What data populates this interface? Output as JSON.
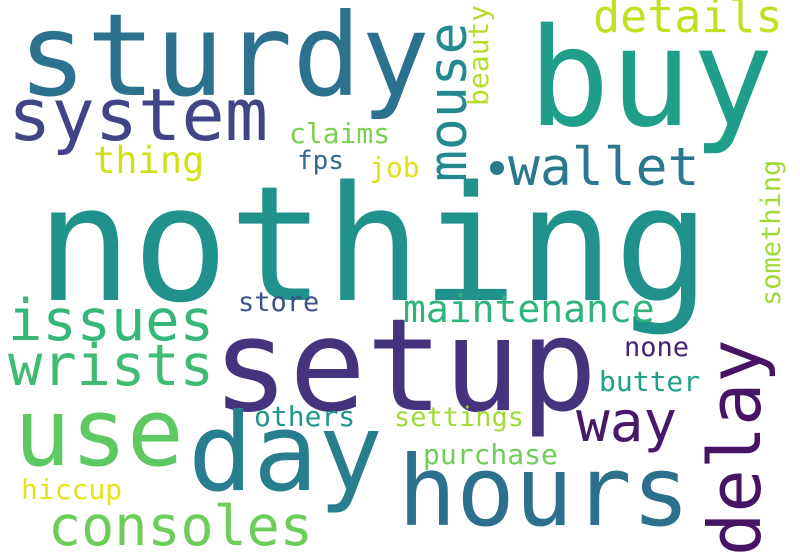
{
  "words": [
    {
      "text": "nothing",
      "color": "#21918c"
    },
    {
      "text": "buy",
      "color": "#1f9e89"
    },
    {
      "text": "sturdy",
      "color": "#2c728e"
    },
    {
      "text": "setup",
      "color": "#46337e"
    },
    {
      "text": "hours",
      "color": "#2d708e"
    },
    {
      "text": "day",
      "color": "#287d8e"
    },
    {
      "text": "use",
      "color": "#5ec962"
    },
    {
      "text": "system",
      "color": "#414487"
    },
    {
      "text": "wallet",
      "color": "#2a788e"
    },
    {
      "text": "mouse",
      "color": "#23898e"
    },
    {
      "text": "details",
      "color": "#c2df23"
    },
    {
      "text": "beauty",
      "color": "#b5de2b"
    },
    {
      "text": "claims",
      "color": "#7ad151"
    },
    {
      "text": "thing",
      "color": "#d0e11c"
    },
    {
      "text": "fps",
      "color": "#31688e"
    },
    {
      "text": "job",
      "color": "#dde318"
    },
    {
      "text": "something",
      "color": "#a0da39"
    },
    {
      "text": "issues",
      "color": "#35b779"
    },
    {
      "text": "wrists",
      "color": "#3fbc73"
    },
    {
      "text": "store",
      "color": "#3b528b"
    },
    {
      "text": "maintenance",
      "color": "#2fb47c"
    },
    {
      "text": "none",
      "color": "#482475"
    },
    {
      "text": "delay",
      "color": "#471365"
    },
    {
      "text": "way",
      "color": "#48186a"
    },
    {
      "text": "butter",
      "color": "#1fa187"
    },
    {
      "text": "settings",
      "color": "#9fda3a"
    },
    {
      "text": "others",
      "color": "#1f988b"
    },
    {
      "text": "purchase",
      "color": "#6ece58"
    },
    {
      "text": "consoles",
      "color": "#6ccd5a"
    },
    {
      "text": "hiccup",
      "color": "#e5e419"
    }
  ]
}
